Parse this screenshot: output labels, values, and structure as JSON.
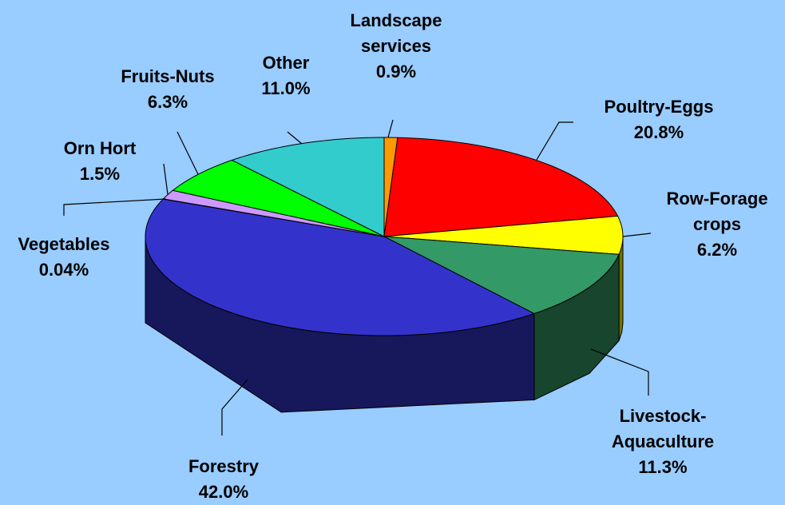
{
  "chart_data": {
    "type": "pie",
    "categories": [
      "Landscape services",
      "Poultry-Eggs",
      "Row-Forage crops",
      "Livestock-Aquaculture",
      "Forestry",
      "Vegetables",
      "Orn Hort",
      "Fruits-Nuts",
      "Other"
    ],
    "values": [
      0.9,
      20.8,
      6.2,
      11.3,
      42.0,
      0.04,
      1.5,
      6.3,
      11.0
    ],
    "value_labels": [
      "0.9%",
      "20.8%",
      "6.2%",
      "11.3%",
      "42.0%",
      "0.04%",
      "1.5%",
      "6.3%",
      "11.0%"
    ],
    "colors": [
      "#ff9900",
      "#ff0000",
      "#ffff00",
      "#339966",
      "#3333cc",
      "#000080",
      "#cc99ff",
      "#00ff00",
      "#33cccc"
    ]
  }
}
